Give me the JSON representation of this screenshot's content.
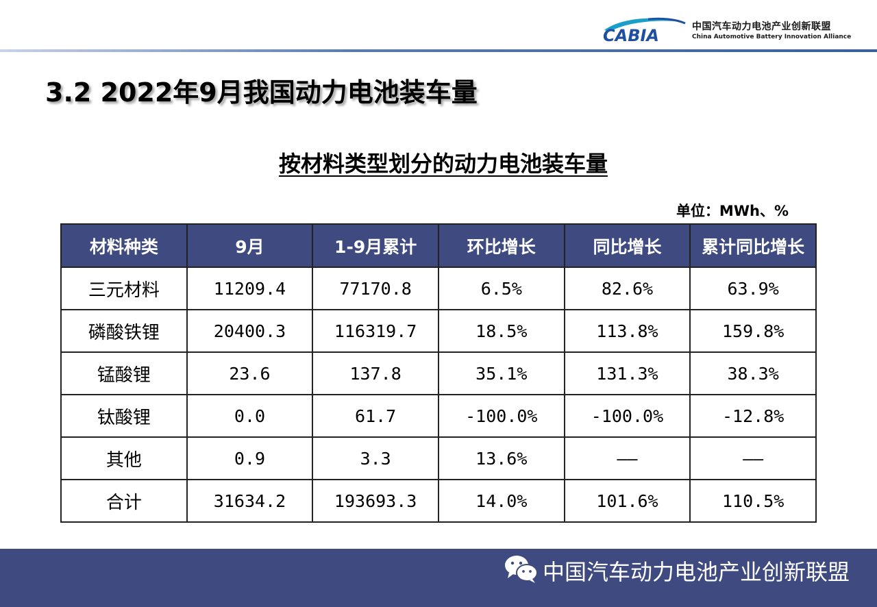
{
  "header": {
    "logo_text": "CABIA",
    "org_name_cn": "中国汽车动力电池产业创新联盟",
    "org_name_en": "China Automotive Battery Innovation Alliance"
  },
  "page_title": "3.2 2022年9月我国动力电池装车量",
  "subtitle": "按材料类型划分的动力电池装车量",
  "unit": "单位：MWh、%",
  "table": {
    "headers": [
      "材料种类",
      "9月",
      "1-9月累计",
      "环比增长",
      "同比增长",
      "累计同比增长"
    ],
    "rows": [
      [
        "三元材料",
        "11209.4",
        "77170.8",
        "6.5%",
        "82.6%",
        "63.9%"
      ],
      [
        "磷酸铁锂",
        "20400.3",
        "116319.7",
        "18.5%",
        "113.8%",
        "159.8%"
      ],
      [
        "锰酸锂",
        "23.6",
        "137.8",
        "35.1%",
        "131.3%",
        "38.3%"
      ],
      [
        "钛酸锂",
        "0.0",
        "61.7",
        "-100.0%",
        "-100.0%",
        "-12.8%"
      ],
      [
        "其他",
        "0.9",
        "3.3",
        "13.6%",
        "——",
        "——"
      ],
      [
        "合计",
        "31634.2",
        "193693.3",
        "14.0%",
        "101.6%",
        "110.5%"
      ]
    ]
  },
  "footer": {
    "icon": "wechat-icon",
    "text": "中国汽车动力电池产业创新联盟"
  },
  "colors": {
    "header_fill": "#3f4a80",
    "footer_fill": "#3f4a80",
    "logo_blue": "#1f4fa0",
    "logo_teal": "#1aa0c8"
  }
}
